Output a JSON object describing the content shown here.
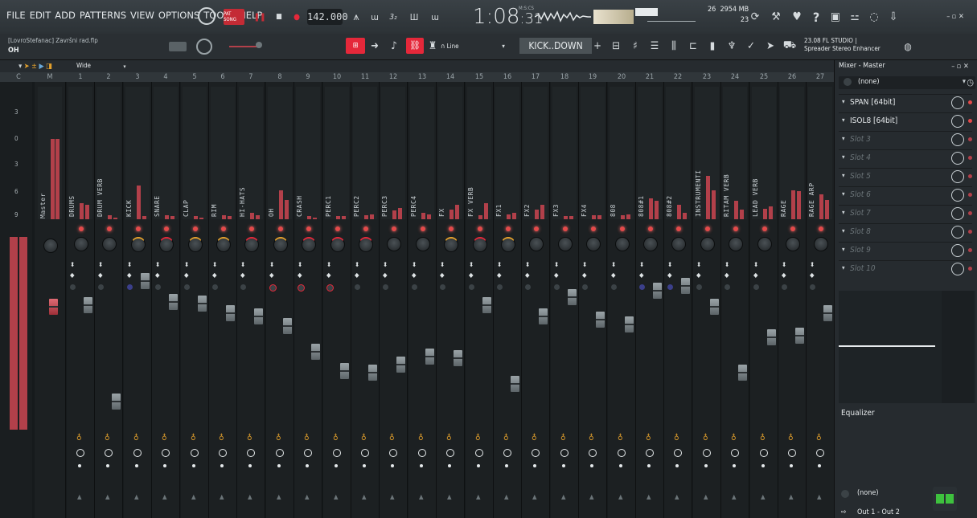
{
  "menu": {
    "file": "FILE",
    "edit": "EDIT",
    "add": "ADD",
    "patterns": "PATTERNS",
    "view": "VIEW",
    "options": "OPTIONS",
    "tools": "TOOLS",
    "help": "HELP"
  },
  "transport": {
    "pattern_song": "PAT SONG",
    "tempo": "142.000",
    "song_time_main": "1:08",
    "song_time_sub": ":31",
    "time_unit": "M:S:CS"
  },
  "system": {
    "voices": "26",
    "memory": "2954 MB",
    "cpu_cores": "23"
  },
  "project": {
    "title": "[LovroStefanac] Završni rad.flp",
    "hint": "OH"
  },
  "toolbar2": {
    "snap": "Line",
    "pattern": "KICK..DOWN",
    "plugin_info_line1": "23.08  FL STUDIO |",
    "plugin_info_line2": "Spreader Stereo Enhancer"
  },
  "mixer_toolbar": {
    "view": "Wide"
  },
  "db_labels": [
    "3",
    "0",
    "3",
    "6",
    "9"
  ],
  "tracks": [
    {
      "num": "C",
      "name": ""
    },
    {
      "num": "M",
      "name": "Master"
    },
    {
      "num": "1",
      "name": "DRUMS"
    },
    {
      "num": "2",
      "name": "DRUM VERB"
    },
    {
      "num": "3",
      "name": "KICK"
    },
    {
      "num": "4",
      "name": "SNARE"
    },
    {
      "num": "5",
      "name": "CLAP"
    },
    {
      "num": "6",
      "name": "RIM"
    },
    {
      "num": "7",
      "name": "HI-HATS"
    },
    {
      "num": "8",
      "name": "OH"
    },
    {
      "num": "9",
      "name": "CRASH"
    },
    {
      "num": "10",
      "name": "PERC1"
    },
    {
      "num": "11",
      "name": "PERC2"
    },
    {
      "num": "12",
      "name": "PERC3"
    },
    {
      "num": "13",
      "name": "PERC4"
    },
    {
      "num": "14",
      "name": "FX"
    },
    {
      "num": "15",
      "name": "FX VERB"
    },
    {
      "num": "16",
      "name": "FX1"
    },
    {
      "num": "17",
      "name": "FX2"
    },
    {
      "num": "18",
      "name": "FX3"
    },
    {
      "num": "19",
      "name": "FX4"
    },
    {
      "num": "20",
      "name": "808"
    },
    {
      "num": "21",
      "name": "808#1"
    },
    {
      "num": "22",
      "name": "808#2"
    },
    {
      "num": "23",
      "name": "INSTRUMENTI"
    },
    {
      "num": "24",
      "name": "RITAM VERB"
    },
    {
      "num": "25",
      "name": "LEAD VERB"
    },
    {
      "num": "26",
      "name": "RAGE"
    },
    {
      "num": "27",
      "name": "RAGE ARP"
    }
  ],
  "right_panel": {
    "title": "Mixer - Master",
    "input": "(none)",
    "slots": [
      {
        "label": "SPAN [64bit]",
        "active": true
      },
      {
        "label": "ISOL8 [64bit]",
        "active": true
      },
      {
        "label": "Slot 3",
        "active": false
      },
      {
        "label": "Slot 4",
        "active": false
      },
      {
        "label": "Slot 5",
        "active": false
      },
      {
        "label": "Slot 6",
        "active": false
      },
      {
        "label": "Slot 7",
        "active": false
      },
      {
        "label": "Slot 8",
        "active": false
      },
      {
        "label": "Slot 9",
        "active": false
      },
      {
        "label": "Slot 10",
        "active": false
      }
    ],
    "eq_label": "Equalizer",
    "output_none": "(none)",
    "output": "Out 1 - Out 2"
  },
  "colors": {
    "meter": "#b2404a",
    "accent_red": "#e44a4a",
    "record": "#e5283a",
    "pattern_btn": "#e5283a"
  }
}
